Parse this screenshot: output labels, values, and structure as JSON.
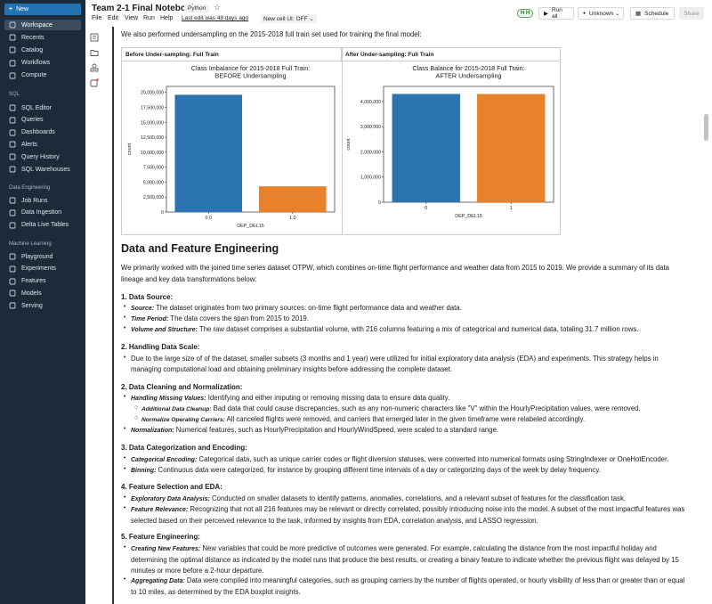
{
  "sidebar": {
    "new_label": "New",
    "items": [
      {
        "label": "Workspace",
        "icon": "folder-icon",
        "active": true
      },
      {
        "label": "Recents",
        "icon": "clock-icon"
      },
      {
        "label": "Catalog",
        "icon": "catalog-icon"
      },
      {
        "label": "Workflows",
        "icon": "workflow-icon"
      },
      {
        "label": "Compute",
        "icon": "cloud-icon"
      }
    ],
    "sql_section": "SQL",
    "sql_items": [
      {
        "label": "SQL Editor",
        "icon": "editor-icon"
      },
      {
        "label": "Queries",
        "icon": "query-icon"
      },
      {
        "label": "Dashboards",
        "icon": "dashboard-icon"
      },
      {
        "label": "Alerts",
        "icon": "bell-icon"
      },
      {
        "label": "Query History",
        "icon": "history-icon"
      },
      {
        "label": "SQL Warehouses",
        "icon": "warehouse-icon"
      }
    ],
    "de_section": "Data Engineering",
    "de_items": [
      {
        "label": "Job Runs",
        "icon": "jobs-icon"
      },
      {
        "label": "Data Ingestion",
        "icon": "ingest-icon"
      },
      {
        "label": "Delta Live Tables",
        "icon": "delta-icon"
      }
    ],
    "ml_section": "Machine Learning",
    "ml_items": [
      {
        "label": "Playground",
        "icon": "playground-icon"
      },
      {
        "label": "Experiments",
        "icon": "experiment-icon"
      },
      {
        "label": "Features",
        "icon": "features-icon"
      },
      {
        "label": "Models",
        "icon": "models-icon"
      },
      {
        "label": "Serving",
        "icon": "serving-icon"
      }
    ]
  },
  "header": {
    "title": "Team 2-1 Final Notebook",
    "language": "Python",
    "menus": [
      "File",
      "Edit",
      "View",
      "Run",
      "Help"
    ],
    "last_edit": "Last edit was 48 days ago",
    "new_cell_ui": "New cell UI: OFF",
    "avatar": "H H",
    "run_all": "Run all",
    "cluster": "Unknown",
    "schedule": "Schedule",
    "share": "Share"
  },
  "notebook": {
    "intro": "We also performed undersampling on the 2015-2018 full train set used for training the final model:",
    "table_headers": [
      "Before Under-sampling: Full Train",
      "After Under-sampling: Full Train"
    ],
    "heading": "Data and Feature Engineering",
    "summary": "We primarily worked with the joined time series dataset OTPW, which combines on-time flight performance and weather data from 2015 to 2019. We provide a summary of its data lineage and key data transformations below:",
    "s1_title": "1. Data Source:",
    "s1_items": [
      {
        "label": "Source:",
        "text": " The dataset originates from two primary sources: on-time flight performance data and weather data."
      },
      {
        "label": "Time Period:",
        "text": " The data covers the span from 2015 to 2019."
      },
      {
        "label": "Volume and Structure:",
        "text": " The raw dataset comprises a substantial volume, with 216 columns featuring a mix of categorical and numerical data, totaling 31.7 million rows."
      }
    ],
    "s2_title": "2. Handling Data Scale:",
    "s2_text": "Due to the large size of of the dataset, smaller subsets (3 months and 1 year) were utilized for initial exploratory data analysis (EDA) and experiments. This strategy helps in managing computational load and obtaining preliminary insights before addressing the complete dataset.",
    "s3_title": "2. Data Cleaning and Normalization:",
    "s3_items": [
      {
        "label": "Handling Missing Values:",
        "text": " Identifying and either imputing or removing missing data to ensure data quality."
      },
      {
        "label": "Additional Data Cleanup:",
        "text": " Bad data that could cause discrepancies, such as any non-numeric characters like \"V\" within the HourlyPrecipitation values, were removed."
      },
      {
        "label": "Normalize Operating Carriers:",
        "text": " All canceled flights were removed, and carriers that emerged later in the given timeframe were relabeled accordingly."
      },
      {
        "label": "Normalization:",
        "text": " Numerical features, such as HourlyPrecipitation and HourlyWindSpeed, were scaled to a standard range."
      }
    ],
    "s4_title": "3. Data Categorization and Encoding:",
    "s4_items": [
      {
        "label": "Categorical Encoding:",
        "text": " Categorical data, such as unique carrier codes or flight diversion statuses, were converted into numerical formats using StringIndexer or OneHotEncoder."
      },
      {
        "label": "Binning:",
        "text": " Continuous data were categorized, for instance by grouping different time intervals of a day or categorizing days of the week by delay frequency."
      }
    ],
    "s5_title": "4. Feature Selection and EDA:",
    "s5_items": [
      {
        "label": "Exploratory Data Analysis:",
        "text": " Conducted on smaller datasets to identify patterns, anomalies, correlations, and a relevant subset of features for the classification task."
      },
      {
        "label": "Feature Relevance:",
        "text": " Recognizing that not all 216 features may be relevant or directly correlated, possibly introducing noise into the model. A subset of the most impactful features was selected based on their perceived relevance to the task, informed by insights from EDA, correlation analysis, and LASSO regression."
      }
    ],
    "s6_title": "5. Feature Engineering:",
    "s6_items": [
      {
        "label": "Creating New Features:",
        "text": " New variables that could be more predictive of outcomes were generated. For example, calculating the distance from the most impactful holiday and determining the optimal distance as indicated by the model runs that produce the best results, or creating a binary feature to indicate whether the previous flight was delayed by 15 minutes or more before a 2-hour departure."
      },
      {
        "label": "Aggregating Data:",
        "text": " Data were compiled into meaningful categories, such as grouping carriers by the number of flights operated, or hourly visibility of less than or greater than or equal to 10 miles, as determined by the EDA boxplot insights."
      }
    ]
  },
  "chart_data": [
    {
      "type": "bar",
      "title": "Class Imbalance for 2015-2018 Full Train:\nBEFORE Undersampling",
      "xlabel": "DEP_DEL15",
      "ylabel": "count",
      "categories": [
        "0.0",
        "1.0"
      ],
      "values": [
        19600000,
        4300000
      ],
      "colors": [
        "#2b74b0",
        "#e9812a"
      ],
      "ylim": [
        0,
        21000000
      ],
      "yticks": [
        0,
        2500000,
        5000000,
        7500000,
        10000000,
        12500000,
        15000000,
        17500000,
        20000000
      ],
      "ytick_labels": [
        "0",
        "2,500,000",
        "5,000,000",
        "7,500,000",
        "10,000,000",
        "12,500,000",
        "15,000,000",
        "17,500,000",
        "20,000,000"
      ]
    },
    {
      "type": "bar",
      "title": "Class Balance for 2015-2018 Full Train:\nAFTER Undersampling",
      "xlabel": "DEP_DEL15",
      "ylabel": "count",
      "categories": [
        "0",
        "1"
      ],
      "values": [
        4300000,
        4300000
      ],
      "colors": [
        "#2b74b0",
        "#e9812a"
      ],
      "ylim": [
        0,
        4600000
      ],
      "yticks": [
        0,
        1000000,
        2000000,
        3000000,
        4000000
      ],
      "ytick_labels": [
        "0",
        "1,000,000",
        "2,000,000",
        "3,000,000",
        "4,000,000"
      ]
    }
  ]
}
